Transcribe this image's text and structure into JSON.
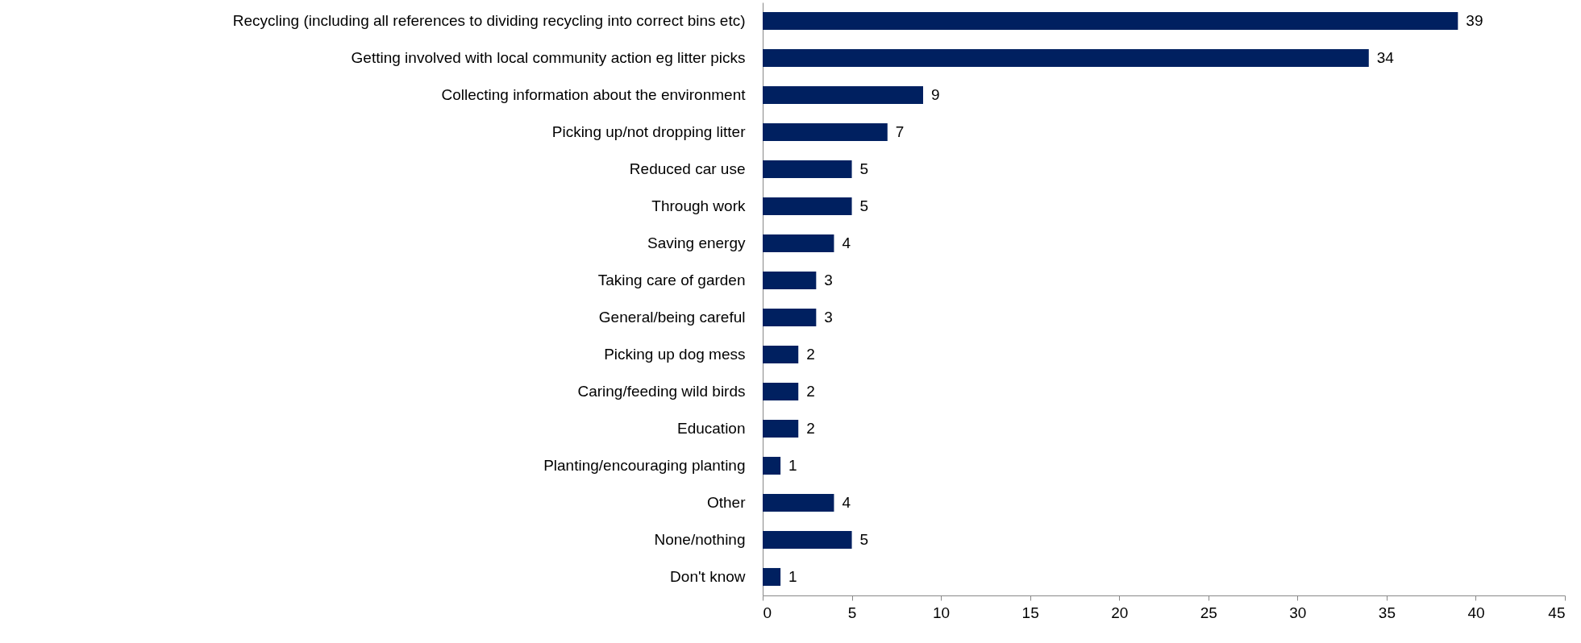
{
  "chart_data": {
    "type": "bar",
    "orientation": "horizontal",
    "categories": [
      "Recycling (including all references to dividing recycling into correct bins etc)",
      "Getting involved with local community action eg  litter picks",
      "Collecting information about the environment",
      "Picking up/not dropping litter",
      "Reduced car use",
      "Through work",
      "Saving energy",
      "Taking care of garden",
      "General/being careful",
      "Picking up dog mess",
      "Caring/feeding wild birds",
      "Education",
      "Planting/encouraging planting",
      "Other",
      "None/nothing",
      "Don't know"
    ],
    "values": [
      39,
      34,
      9,
      7,
      5,
      5,
      4,
      3,
      3,
      2,
      2,
      2,
      1,
      4,
      5,
      1
    ],
    "color": "#002060",
    "data_labels": true,
    "grid": false,
    "xlim": [
      0,
      45
    ],
    "xticks": [
      0,
      5,
      10,
      15,
      20,
      25,
      30,
      35,
      40,
      45
    ]
  }
}
